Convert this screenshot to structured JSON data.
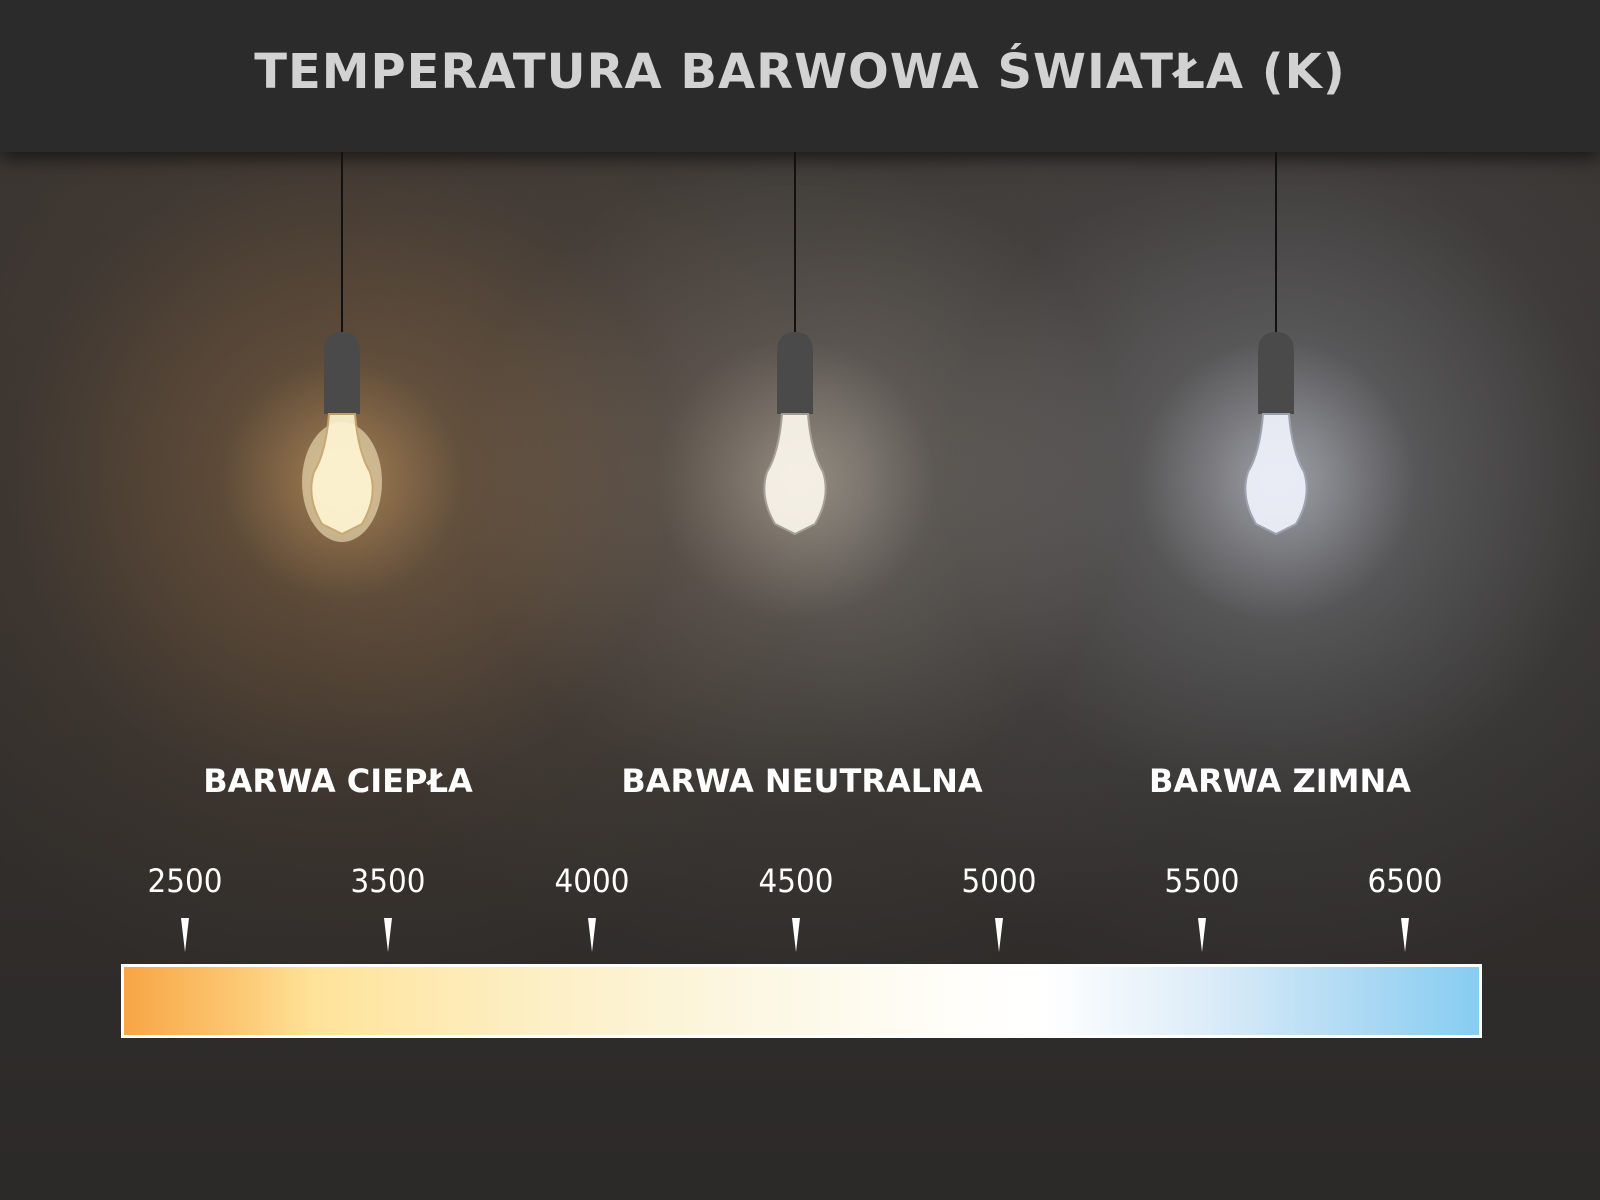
{
  "title": "TEMPERATURA BARWOWA ŚWIATŁA (K)",
  "categories": [
    {
      "label": "BARWA CIEPŁA",
      "glow": "#ffc070"
    },
    {
      "label": "BARWA NEUTRALNA",
      "glow": "#fff4dc"
    },
    {
      "label": "BARWA ZIMNA",
      "glow": "#e6ecff"
    }
  ],
  "scale": {
    "ticks": [
      "2500",
      "3500",
      "4000",
      "4500",
      "5000",
      "5500",
      "6500"
    ],
    "colors": {
      "start": "#f7a545",
      "mid": "#ffffff",
      "end": "#86cdf2"
    }
  }
}
